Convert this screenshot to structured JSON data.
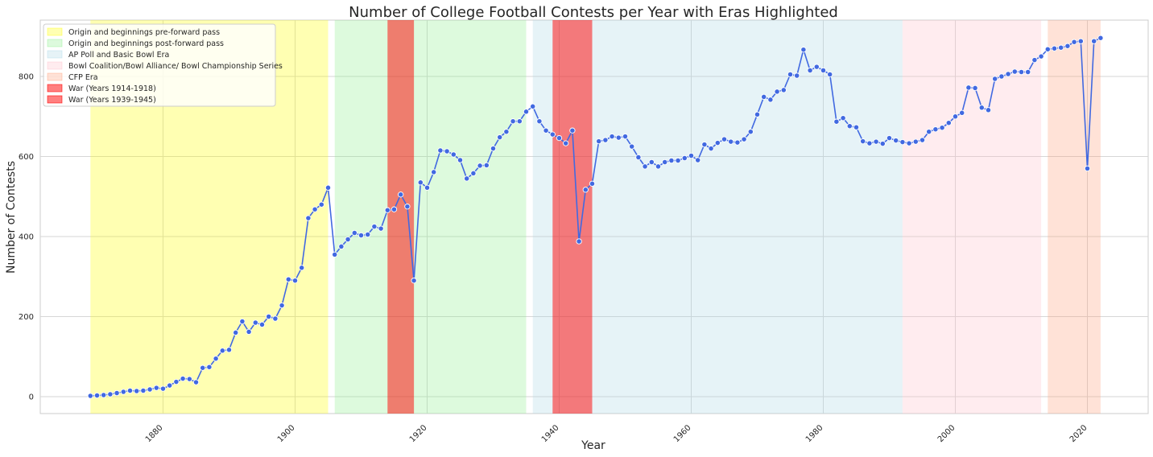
{
  "chart_data": {
    "type": "line",
    "title": "Number of College Football Contests per Year with Eras Highlighted",
    "xlabel": "Year",
    "ylabel": "Number of Contests",
    "xlim": [
      1865,
      2029
    ],
    "ylim": [
      -42,
      945
    ],
    "xticks": [
      "1880",
      "1900",
      "1920",
      "1940",
      "1960",
      "1980",
      "2000",
      "2020"
    ],
    "yticks": [
      "0",
      "200",
      "400",
      "600",
      "800"
    ],
    "grid": true,
    "legend_position": "top-left",
    "line_color": "#4169e1",
    "eras": [
      {
        "label": "Origin and beginnings pre-forward pass",
        "start": 1869,
        "end": 1905,
        "color": "#ffff00",
        "opacity": 0.3
      },
      {
        "label": "Origin and beginnings post-forward pass",
        "start": 1906,
        "end": 1935,
        "color": "#90ee90",
        "opacity": 0.3
      },
      {
        "label": "AP Poll and Basic Bowl Era",
        "start": 1936,
        "end": 1992,
        "color": "#add8e6",
        "opacity": 0.3
      },
      {
        "label": "Bowl Coalition/Bowl Alliance/ Bowl Championship Series",
        "start": 1992,
        "end": 2013,
        "color": "#ffc0cb",
        "opacity": 0.3
      },
      {
        "label": "CFP Era",
        "start": 2014,
        "end": 2022,
        "color": "#ffa07a",
        "opacity": 0.3
      }
    ],
    "wars": [
      {
        "label": "War (Years 1914-1918)",
        "start": 1914,
        "end": 1918,
        "color": "#ff0000",
        "opacity": 0.5
      },
      {
        "label": "War (Years 1939-1945)",
        "start": 1939,
        "end": 1945,
        "color": "#ff0000",
        "opacity": 0.5
      }
    ],
    "series": [
      {
        "x": [
          1869,
          1870,
          1871,
          1872,
          1873,
          1874,
          1875,
          1876,
          1877,
          1878,
          1879,
          1880,
          1881,
          1882,
          1883,
          1884,
          1885,
          1886,
          1887,
          1888,
          1889,
          1890,
          1891,
          1892,
          1893,
          1894,
          1895,
          1896,
          1897,
          1898,
          1899,
          1900,
          1901,
          1902,
          1903,
          1904,
          1905,
          1906,
          1907,
          1908,
          1909,
          1910,
          1911,
          1912,
          1913,
          1914,
          1915,
          1916,
          1917,
          1918,
          1919,
          1920,
          1921,
          1922,
          1923,
          1924,
          1925,
          1926,
          1927,
          1928,
          1929,
          1930,
          1931,
          1932,
          1933,
          1934,
          1935,
          1936,
          1937,
          1938,
          1939,
          1940,
          1941,
          1942,
          1943,
          1944,
          1945,
          1946,
          1947,
          1948,
          1949,
          1950,
          1951,
          1952,
          1953,
          1954,
          1955,
          1956,
          1957,
          1958,
          1959,
          1960,
          1961,
          1962,
          1963,
          1964,
          1965,
          1966,
          1967,
          1968,
          1969,
          1970,
          1971,
          1972,
          1973,
          1974,
          1975,
          1976,
          1977,
          1978,
          1979,
          1980,
          1981,
          1982,
          1983,
          1984,
          1985,
          1986,
          1987,
          1988,
          1989,
          1990,
          1991,
          1992,
          1993,
          1994,
          1995,
          1996,
          1997,
          1998,
          1999,
          2000,
          2001,
          2002,
          2003,
          2004,
          2005,
          2006,
          2007,
          2008,
          2009,
          2010,
          2011,
          2012,
          2013,
          2014,
          2015,
          2016,
          2017,
          2018,
          2019,
          2020,
          2021,
          2022
        ],
        "values": [
          2,
          3,
          4,
          6,
          9,
          12,
          15,
          14,
          15,
          18,
          22,
          20,
          28,
          37,
          45,
          44,
          36,
          72,
          74,
          95,
          115,
          117,
          160,
          188,
          162,
          185,
          180,
          200,
          195,
          228,
          293,
          290,
          322,
          446,
          468,
          480,
          522,
          355,
          375,
          393,
          409,
          403,
          405,
          425,
          420,
          466,
          468,
          505,
          475,
          290,
          535,
          522,
          561,
          615,
          613,
          605,
          591,
          545,
          558,
          577,
          578,
          620,
          648,
          662,
          688,
          688,
          712,
          725,
          688,
          665,
          655,
          646,
          633,
          665,
          388,
          517,
          532,
          638,
          641,
          650,
          647,
          650,
          625,
          598,
          575,
          586,
          575,
          586,
          590,
          590,
          596,
          602,
          591,
          630,
          620,
          634,
          643,
          637,
          635,
          643,
          662,
          705,
          749,
          742,
          762,
          766,
          805,
          802,
          867,
          815,
          824,
          815,
          805,
          687,
          696,
          676,
          673,
          638,
          633,
          637,
          632,
          646,
          640,
          636,
          633,
          637,
          641,
          662,
          668,
          672,
          684,
          700,
          709,
          772,
          771,
          722,
          716,
          794,
          800,
          806,
          812,
          811,
          811,
          841,
          850,
          868,
          870,
          872,
          876,
          886,
          888,
          570,
          888,
          896
        ]
      }
    ]
  }
}
